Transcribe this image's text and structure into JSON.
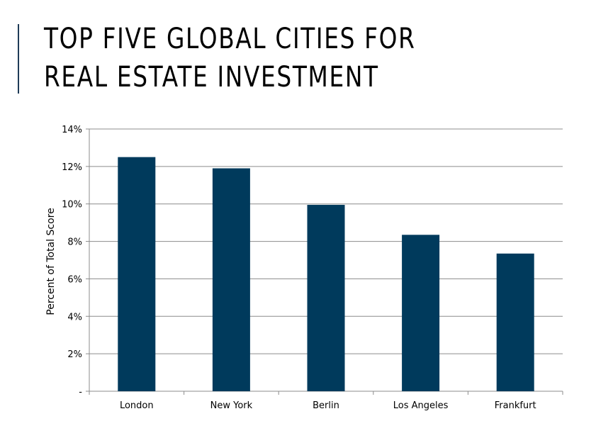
{
  "slide": {
    "title": "TOP FIVE GLOBAL CITIES FOR REAL ESTATE INVESTMENT"
  },
  "colors": {
    "bar": "#003a5c",
    "gridline": "#8c8c8c",
    "accent": "#1f3b57"
  },
  "chart_data": {
    "type": "bar",
    "title": "",
    "xlabel": "",
    "ylabel": "Percent of Total Score",
    "categories": [
      "London",
      "New York",
      "Berlin",
      "Los Angeles",
      "Frankfurt"
    ],
    "values": [
      12.5,
      11.9,
      9.95,
      8.35,
      7.35
    ],
    "ylim": [
      0,
      14
    ],
    "yticks": [
      0,
      2,
      4,
      6,
      8,
      10,
      12,
      14
    ],
    "ytick_labels": [
      "-",
      "2%",
      "4%",
      "6%",
      "8%",
      "10%",
      "12%",
      "14%"
    ],
    "grid": true,
    "legend": "none"
  }
}
